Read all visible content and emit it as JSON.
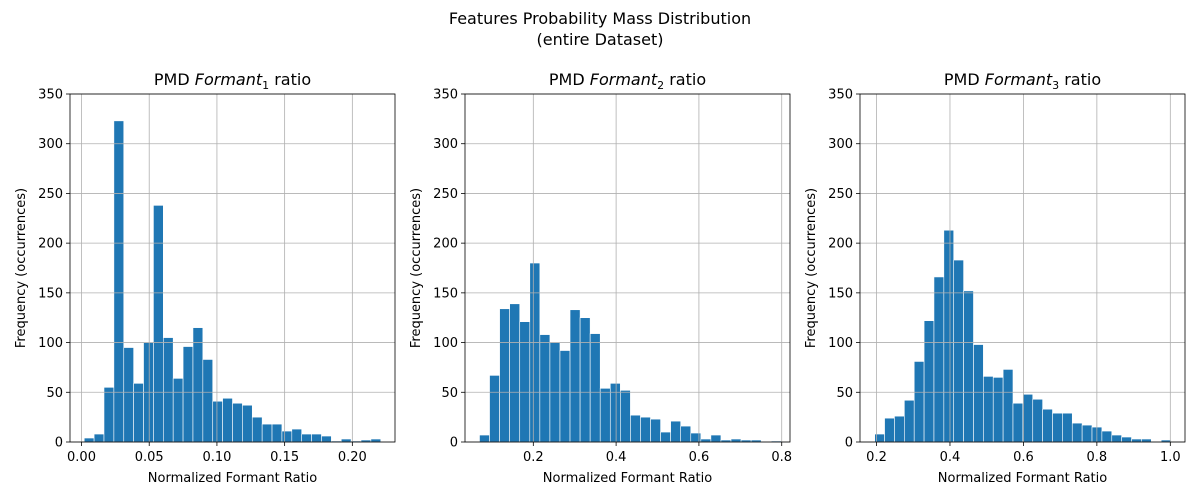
{
  "figure": {
    "suptitle": "Features Probability Mass Distribution",
    "subtitle": "(entire Dataset)"
  },
  "chart_data": [
    {
      "type": "bar",
      "title_prefix": "PMD ",
      "title_var": "Formant",
      "title_sub": "1",
      "title_suffix": " ratio",
      "xlabel": "Normalized Formant Ratio",
      "ylabel": "Frequency (occurrences)",
      "xlim": [
        -0.0085,
        0.2315
      ],
      "ylim": [
        0,
        350
      ],
      "xticks": [
        0.0,
        0.05,
        0.1,
        0.15,
        0.2
      ],
      "xtick_labels": [
        "0.00",
        "0.05",
        "0.10",
        "0.15",
        "0.20"
      ],
      "yticks": [
        0,
        50,
        100,
        150,
        200,
        250,
        300,
        350
      ],
      "bin_start": 0.002,
      "bin_width": 0.0073,
      "grid": true,
      "values": [
        4,
        8,
        55,
        323,
        95,
        59,
        100,
        238,
        105,
        64,
        96,
        115,
        83,
        41,
        44,
        39,
        37,
        25,
        18,
        18,
        11,
        13,
        8,
        8,
        6,
        1,
        3,
        1,
        2,
        3
      ]
    },
    {
      "type": "bar",
      "title_prefix": "PMD ",
      "title_var": "Formant",
      "title_sub": "2",
      "title_suffix": " ratio",
      "xlabel": "Normalized Formant Ratio",
      "ylabel": "Frequency (occurrences)",
      "xlim": [
        0.035,
        0.82
      ],
      "ylim": [
        0,
        350
      ],
      "xticks": [
        0.2,
        0.4,
        0.6,
        0.8
      ],
      "xtick_labels": [
        "0.2",
        "0.4",
        "0.6",
        "0.8"
      ],
      "yticks": [
        0,
        50,
        100,
        150,
        200,
        250,
        300,
        350
      ],
      "bin_start": 0.07,
      "bin_width": 0.0243,
      "grid": true,
      "values": [
        7,
        67,
        134,
        139,
        121,
        180,
        108,
        100,
        92,
        133,
        125,
        109,
        54,
        59,
        52,
        27,
        25,
        23,
        10,
        21,
        16,
        9,
        3,
        7,
        2,
        3,
        2,
        2,
        0,
        1
      ]
    },
    {
      "type": "bar",
      "title_prefix": "PMD ",
      "title_var": "Formant",
      "title_sub": "3",
      "title_suffix": " ratio",
      "xlabel": "Normalized Formant Ratio",
      "ylabel": "Frequency (occurrences)",
      "xlim": [
        0.155,
        1.04
      ],
      "ylim": [
        0,
        350
      ],
      "xticks": [
        0.2,
        0.4,
        0.6,
        0.8,
        1.0
      ],
      "xtick_labels": [
        "0.2",
        "0.4",
        "0.6",
        "0.8",
        "1.0"
      ],
      "yticks": [
        0,
        50,
        100,
        150,
        200,
        250,
        300,
        350
      ],
      "bin_start": 0.195,
      "bin_width": 0.0269,
      "grid": true,
      "values": [
        8,
        24,
        26,
        42,
        81,
        122,
        166,
        213,
        183,
        152,
        98,
        66,
        65,
        73,
        39,
        48,
        43,
        33,
        29,
        29,
        19,
        17,
        15,
        11,
        7,
        5,
        3,
        3,
        0,
        2
      ]
    }
  ]
}
